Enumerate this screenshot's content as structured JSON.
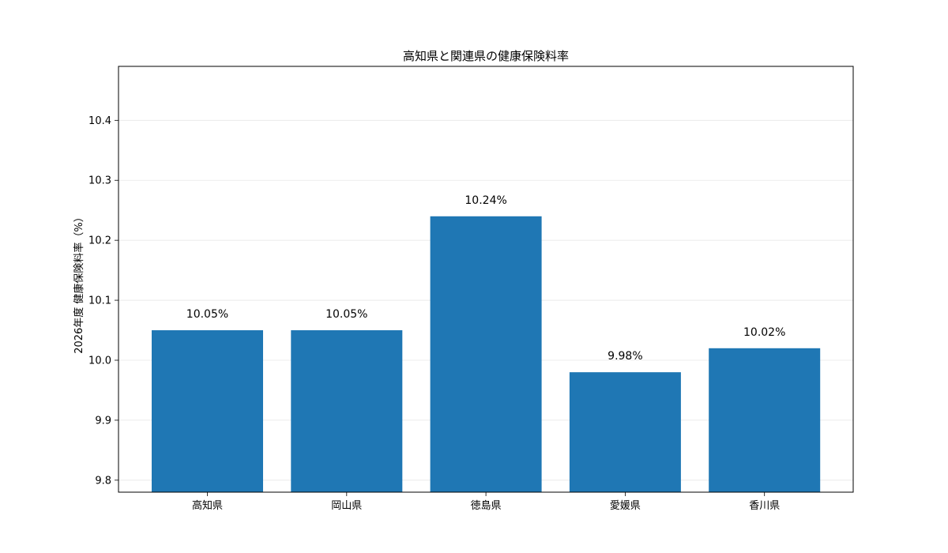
{
  "chart_data": {
    "type": "bar",
    "title": "高知県と関連県の健康保険料率",
    "xlabel": "",
    "ylabel": "2026年度 健康保険料率（%）",
    "categories": [
      "高知県",
      "岡山県",
      "徳島県",
      "愛媛県",
      "香川県"
    ],
    "values": [
      10.05,
      10.05,
      10.24,
      9.98,
      10.02
    ],
    "data_labels": [
      "10.05%",
      "10.05%",
      "10.24%",
      "9.98%",
      "10.02%"
    ],
    "ylim": [
      9.78,
      10.49
    ],
    "yticks": [
      9.8,
      9.9,
      10.0,
      10.1,
      10.2,
      10.3,
      10.4
    ],
    "ytick_labels": [
      "9.8",
      "9.9",
      "10.0",
      "10.1",
      "10.2",
      "10.3",
      "10.4"
    ],
    "grid": true,
    "bar_color": "#1f77b4",
    "grid_color": "#e6e6e6"
  }
}
